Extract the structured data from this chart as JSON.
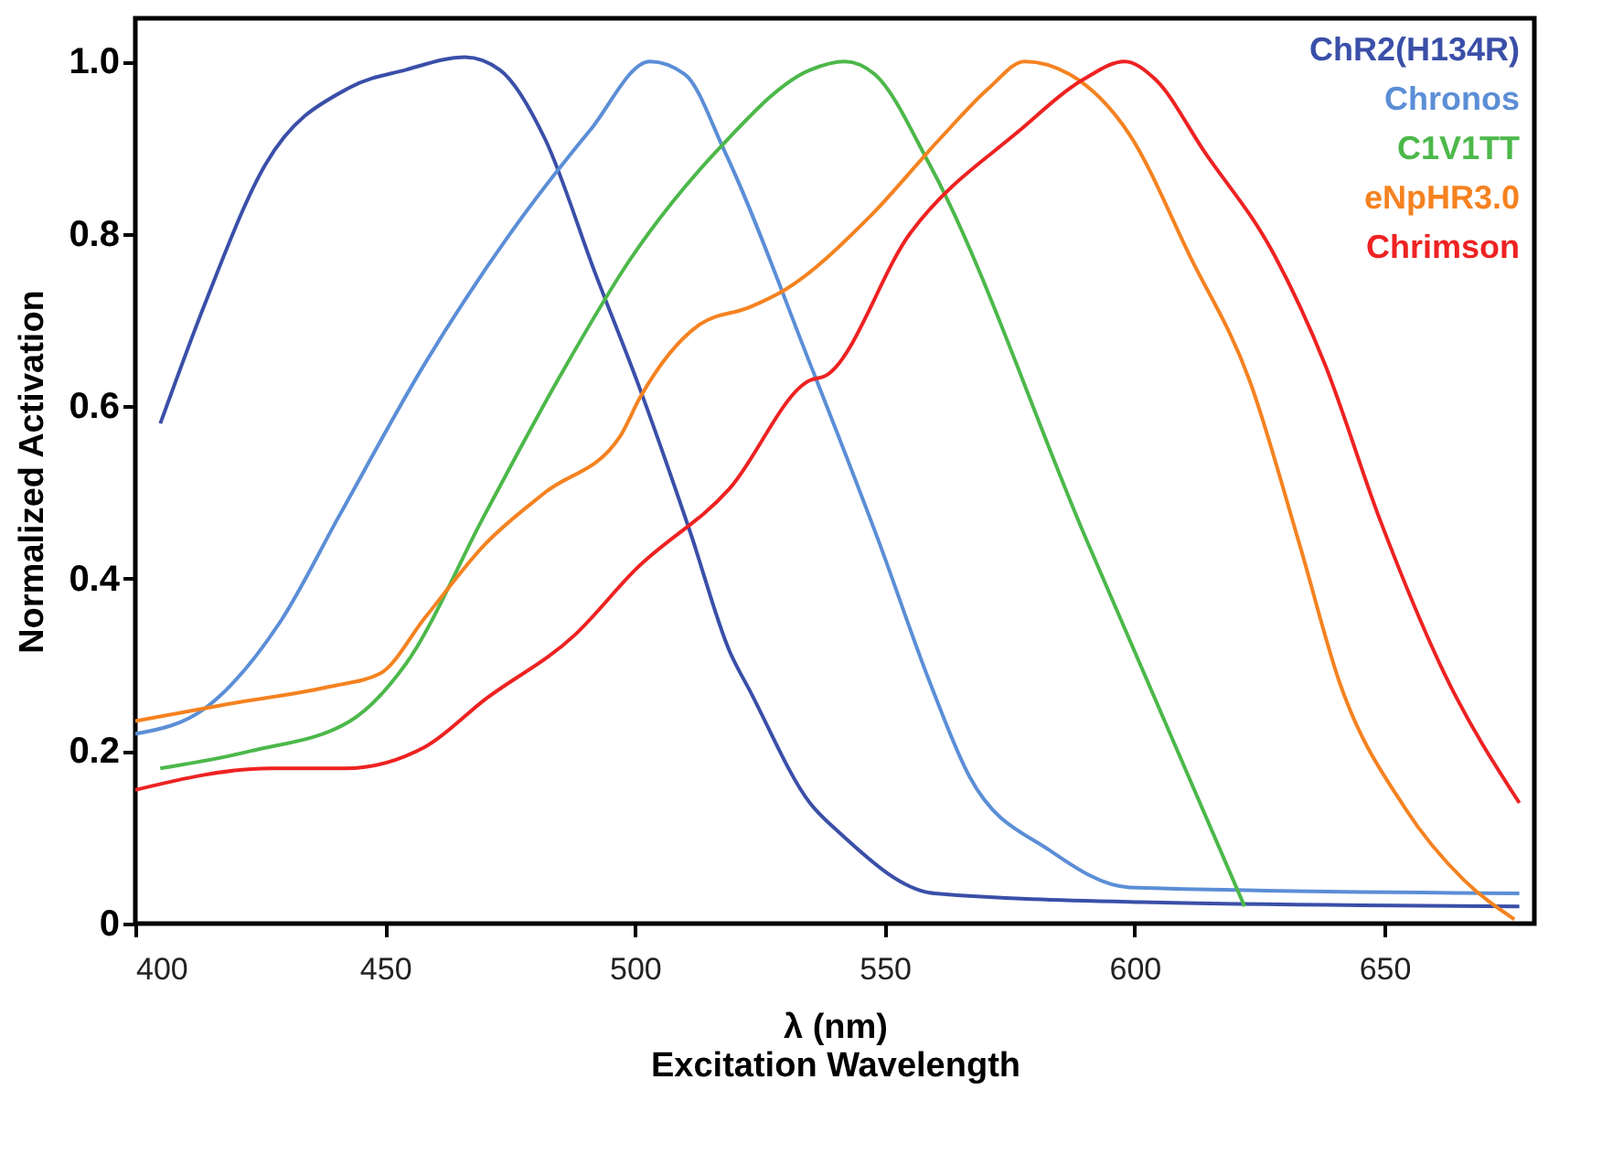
{
  "chart_data": {
    "type": "line",
    "xlabel": "λ (nm)\nExcitation Wavelength",
    "ylabel": "Normalized Activation",
    "xlim": [
      400,
      680
    ],
    "xticks": [
      400,
      450,
      500,
      550,
      600,
      650
    ],
    "ylim": [
      0,
      1.05
    ],
    "yticks": [
      0,
      {
        "value": 0.2,
        "label": "0.2"
      },
      {
        "value": 0.4,
        "label": "0.4"
      },
      {
        "value": 0.6,
        "label": "0.6"
      },
      {
        "value": 0.8,
        "label": "0.8"
      },
      {
        "value": 1.0,
        "label": "1.0"
      }
    ],
    "grid": false,
    "legend": "top right",
    "marker": "none",
    "line_style": "solid",
    "series": [
      {
        "name": "ChR2(H134R)",
        "color": "#3a4fa8",
        "x": [
          405,
          414,
          426,
          443,
          454,
          466,
          473,
          482,
          492,
          501,
          511,
          519,
          523,
          535,
          541,
          560,
          601,
          677
        ],
        "values": [
          0.58,
          0.72,
          0.88,
          0.97,
          0.99,
          1.005,
          0.99,
          0.91,
          0.755,
          0.62,
          0.455,
          0.315,
          0.27,
          0.14,
          0.105,
          0.035,
          0.025,
          0.02
        ]
      },
      {
        "name": "Chronos",
        "color": "#5b8ed6",
        "x": [
          400,
          414,
          429,
          441,
          458,
          475,
          491,
          503,
          510,
          518,
          535,
          549,
          559,
          567,
          583,
          599,
          677
        ],
        "values": [
          0.22,
          0.25,
          0.35,
          0.475,
          0.65,
          0.8,
          0.92,
          1.0,
          0.985,
          0.895,
          0.65,
          0.44,
          0.28,
          0.17,
          0.085,
          0.042,
          0.035
        ]
      },
      {
        "name": "C1V1TT",
        "color": "#4cb84a",
        "x": [
          405,
          423,
          443,
          454,
          470,
          485,
          499,
          517,
          535,
          542,
          548,
          559,
          590,
          622
        ],
        "values": [
          0.18,
          0.2,
          0.235,
          0.3,
          0.475,
          0.635,
          0.77,
          0.9,
          0.99,
          1.0,
          0.985,
          0.88,
          0.45,
          0.02
        ]
      },
      {
        "name": "eNpHR3.0",
        "color": "#f58220",
        "x": [
          400,
          419,
          439,
          449,
          458,
          470,
          482,
          497,
          501,
          513,
          523,
          530,
          547,
          561,
          571,
          578,
          587,
          599,
          611,
          623,
          633,
          641,
          654,
          666,
          676
        ],
        "values": [
          0.235,
          0.255,
          0.275,
          0.29,
          0.355,
          0.44,
          0.5,
          0.565,
          0.61,
          0.695,
          0.715,
          0.735,
          0.82,
          0.91,
          0.97,
          1.0,
          0.985,
          0.915,
          0.775,
          0.63,
          0.44,
          0.28,
          0.135,
          0.05,
          0.005
        ]
      },
      {
        "name": "Chrimson",
        "color": "#ee2222",
        "x": [
          400,
          427,
          442,
          458,
          470,
          488,
          500,
          519,
          535,
          538,
          555,
          577,
          590,
          598,
          604,
          614,
          628,
          638,
          649,
          662,
          677
        ],
        "values": [
          0.155,
          0.18,
          0.18,
          0.205,
          0.26,
          0.335,
          0.41,
          0.505,
          0.63,
          0.635,
          0.8,
          0.92,
          0.98,
          1.0,
          0.98,
          0.895,
          0.775,
          0.65,
          0.47,
          0.29,
          0.14
        ]
      }
    ]
  }
}
